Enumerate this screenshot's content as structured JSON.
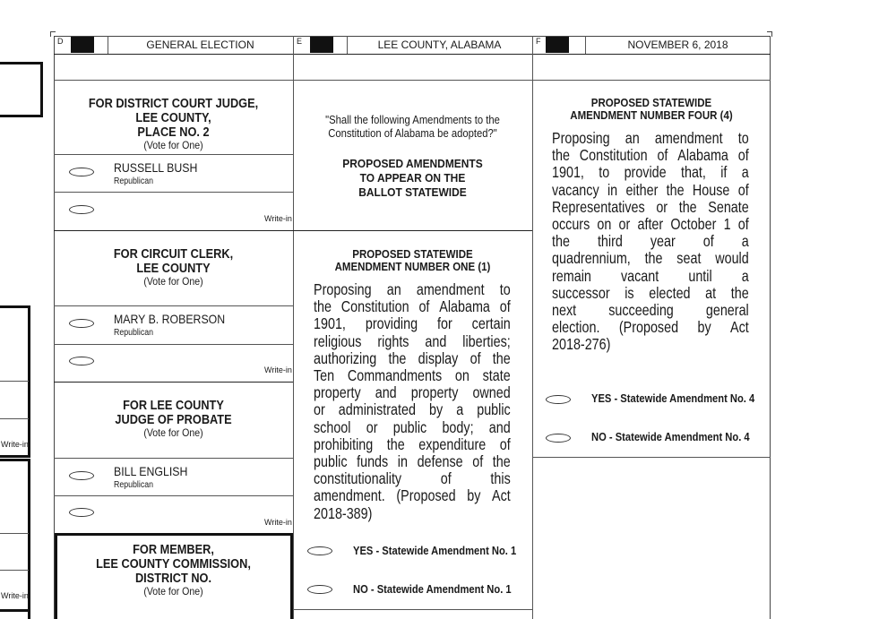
{
  "header": {
    "col_d": {
      "letter": "D",
      "title": "GENERAL ELECTION"
    },
    "col_e": {
      "letter": "E",
      "title": "LEE COUNTY, ALABAMA"
    },
    "col_f": {
      "letter": "F",
      "title": "NOVEMBER 6, 2018"
    }
  },
  "left_partial": {
    "write_in_1": "Write-in",
    "write_in_2": "Write-in"
  },
  "contests": [
    {
      "title": [
        "FOR DISTRICT COURT JUDGE,",
        "LEE COUNTY,",
        "PLACE NO. 2"
      ],
      "vote_for": "(Vote for One)",
      "candidate": "RUSSELL BUSH",
      "party": "Republican",
      "write_in": "Write-in"
    },
    {
      "title": [
        "FOR CIRCUIT CLERK,",
        "LEE COUNTY"
      ],
      "vote_for": "(Vote for One)",
      "candidate": "MARY B. ROBERSON",
      "party": "Republican",
      "write_in": "Write-in"
    },
    {
      "title": [
        "FOR LEE COUNTY",
        "JUDGE OF PROBATE"
      ],
      "vote_for": "(Vote for One)",
      "candidate": "BILL ENGLISH",
      "party": "Republican",
      "write_in": "Write-in"
    },
    {
      "title": [
        "FOR MEMBER,",
        "LEE COUNTY COMMISSION,",
        "DISTRICT NO."
      ],
      "vote_for": "(Vote for One)"
    }
  ],
  "amendments_intro": {
    "question": [
      "\"Shall the following Amendments to the",
      "Constitution of Alabama be adopted?\""
    ],
    "heading": [
      "PROPOSED AMENDMENTS",
      "TO APPEAR ON THE",
      "BALLOT STATEWIDE"
    ]
  },
  "amendment_1": {
    "title": [
      "PROPOSED STATEWIDE",
      "AMENDMENT NUMBER ONE (1)"
    ],
    "lines": [
      "Proposing an amendment to",
      "the Constitution of Alabama of",
      "1901, providing for certain",
      "religious rights and liberties;",
      "authorizing the display of the",
      "Ten Commandments on state",
      "property and property owned",
      "or administrated by a public",
      "school or public body; and",
      "prohibiting the expenditure of",
      "public funds in defense of the",
      "constitutionality of this",
      "amendment. (Proposed by Act",
      "2018-389)"
    ],
    "yes": "YES - Statewide Amendment No. 1",
    "no": "NO - Statewide Amendment No. 1"
  },
  "amendment_4": {
    "title": [
      "PROPOSED STATEWIDE",
      "AMENDMENT NUMBER FOUR (4)"
    ],
    "lines": [
      "Proposing an amendment to",
      "the Constitution of Alabama of",
      "1901, to provide that, if a",
      "vacancy in either the House of",
      "Representatives or the Senate",
      "occurs on or after October 1 of",
      "the third year of a",
      "quadrennium, the seat would",
      "remain vacant until a",
      "successor is elected at the",
      "next succeeding general",
      "election. (Proposed by Act",
      "2018-276)"
    ],
    "yes": "YES - Statewide Amendment No. 4",
    "no": "NO - Statewide Amendment No. 4"
  }
}
